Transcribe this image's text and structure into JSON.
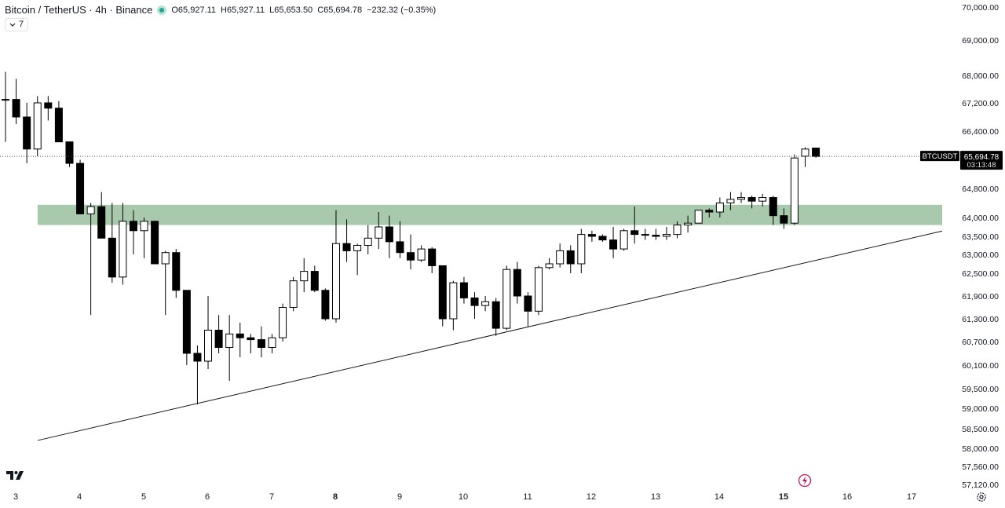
{
  "header": {
    "symbol": "Bitcoin / TetherUS · 4h · Binance",
    "open": "O65,927.11",
    "high": "H65,927.11",
    "low": "L65,653.50",
    "close": "C65,694.78",
    "change": "−232.32 (−0.35%)",
    "indicator_count": "7",
    "status_icon": "market-open-dot-icon"
  },
  "price_label": {
    "ticker": "BTCUSDT",
    "price": "65,694.78",
    "countdown": "03:13:48"
  },
  "colors": {
    "candle_up": "#ffffff",
    "candle_down": "#000000",
    "zone": "#a9c9ad",
    "price_tag": "#000000"
  },
  "icons": [
    "tradingview-logo-icon",
    "lightning-icon",
    "settings-icon",
    "chevron-down-icon"
  ],
  "chart_data": {
    "type": "candlestick",
    "title": "Bitcoin / TetherUS · 4h · Binance",
    "y_ticks": [
      70000,
      69000,
      68000,
      67200,
      66400,
      64800,
      64000,
      63500,
      63000,
      62500,
      61900,
      61300,
      60700,
      60100,
      59500,
      59000,
      58500,
      58000,
      57560,
      57120
    ],
    "y_tick_labels": [
      "70,000.00",
      "69,000.00",
      "68,000.00",
      "67,200.00",
      "66,400.00",
      "64,800.00",
      "64,000.00",
      "63,500.00",
      "63,000.00",
      "62,500.00",
      "61,900.00",
      "61,300.00",
      "60,700.00",
      "60,100.00",
      "59,500.00",
      "59,000.00",
      "58,500.00",
      "58,000.00",
      "57,560.00",
      "57,120.00"
    ],
    "x_labels": [
      "3",
      "4",
      "5",
      "6",
      "7",
      "8",
      "9",
      "10",
      "11",
      "12",
      "13",
      "14",
      "15",
      "16",
      "17"
    ],
    "x_labels_bold": [
      "8",
      "15"
    ],
    "candles": [
      {
        "o": 67300,
        "h": 68100,
        "l": 66100,
        "c": 67300
      },
      {
        "o": 67300,
        "h": 67900,
        "l": 66600,
        "c": 66800
      },
      {
        "o": 66800,
        "h": 67200,
        "l": 65500,
        "c": 65900
      },
      {
        "o": 65900,
        "h": 67400,
        "l": 65700,
        "c": 67200
      },
      {
        "o": 67200,
        "h": 67400,
        "l": 66700,
        "c": 67050
      },
      {
        "o": 67050,
        "h": 67250,
        "l": 66100,
        "c": 66100
      },
      {
        "o": 66100,
        "h": 66100,
        "l": 65400,
        "c": 65500
      },
      {
        "o": 65500,
        "h": 65600,
        "l": 64100,
        "c": 64100
      },
      {
        "o": 64100,
        "h": 64400,
        "l": 61400,
        "c": 64300
      },
      {
        "o": 64300,
        "h": 64700,
        "l": 63450,
        "c": 63450
      },
      {
        "o": 63450,
        "h": 64400,
        "l": 62250,
        "c": 62400
      },
      {
        "o": 62400,
        "h": 64400,
        "l": 62200,
        "c": 63900
      },
      {
        "o": 63900,
        "h": 64200,
        "l": 63000,
        "c": 63650
      },
      {
        "o": 63650,
        "h": 64000,
        "l": 62900,
        "c": 63900
      },
      {
        "o": 63900,
        "h": 63900,
        "l": 62750,
        "c": 62750
      },
      {
        "o": 62750,
        "h": 63100,
        "l": 61400,
        "c": 63050
      },
      {
        "o": 63050,
        "h": 63150,
        "l": 61850,
        "c": 62050
      },
      {
        "o": 62050,
        "h": 62050,
        "l": 60100,
        "c": 60400
      },
      {
        "o": 60400,
        "h": 60600,
        "l": 59100,
        "c": 60200
      },
      {
        "o": 60200,
        "h": 61900,
        "l": 60000,
        "c": 61000
      },
      {
        "o": 61000,
        "h": 61400,
        "l": 60400,
        "c": 60550
      },
      {
        "o": 60550,
        "h": 61400,
        "l": 59700,
        "c": 60900
      },
      {
        "o": 60900,
        "h": 61200,
        "l": 60300,
        "c": 60800
      },
      {
        "o": 60800,
        "h": 60900,
        "l": 60400,
        "c": 60750
      },
      {
        "o": 60750,
        "h": 61100,
        "l": 60300,
        "c": 60550
      },
      {
        "o": 60550,
        "h": 60900,
        "l": 60400,
        "c": 60800
      },
      {
        "o": 60800,
        "h": 61700,
        "l": 60700,
        "c": 61600
      },
      {
        "o": 61600,
        "h": 62400,
        "l": 61500,
        "c": 62300
      },
      {
        "o": 62300,
        "h": 62900,
        "l": 62000,
        "c": 62550
      },
      {
        "o": 62550,
        "h": 62700,
        "l": 62000,
        "c": 62050
      },
      {
        "o": 62050,
        "h": 62100,
        "l": 61250,
        "c": 61300
      },
      {
        "o": 61300,
        "h": 64200,
        "l": 61200,
        "c": 63300
      },
      {
        "o": 63300,
        "h": 63950,
        "l": 62800,
        "c": 63100
      },
      {
        "o": 63100,
        "h": 63300,
        "l": 62450,
        "c": 63250
      },
      {
        "o": 63250,
        "h": 63800,
        "l": 63000,
        "c": 63450
      },
      {
        "o": 63450,
        "h": 64150,
        "l": 63150,
        "c": 63750
      },
      {
        "o": 63750,
        "h": 64050,
        "l": 62900,
        "c": 63350
      },
      {
        "o": 63350,
        "h": 63900,
        "l": 62900,
        "c": 63050
      },
      {
        "o": 63050,
        "h": 63550,
        "l": 62600,
        "c": 62850
      },
      {
        "o": 62850,
        "h": 63250,
        "l": 62800,
        "c": 63150
      },
      {
        "o": 63150,
        "h": 63200,
        "l": 62500,
        "c": 62700
      },
      {
        "o": 62700,
        "h": 62700,
        "l": 61100,
        "c": 61300
      },
      {
        "o": 61300,
        "h": 62300,
        "l": 61000,
        "c": 62250
      },
      {
        "o": 62250,
        "h": 62400,
        "l": 61700,
        "c": 61850
      },
      {
        "o": 61850,
        "h": 62000,
        "l": 61300,
        "c": 61650
      },
      {
        "o": 61650,
        "h": 61900,
        "l": 61500,
        "c": 61750
      },
      {
        "o": 61750,
        "h": 61850,
        "l": 60850,
        "c": 61050
      },
      {
        "o": 61050,
        "h": 62700,
        "l": 61000,
        "c": 62600
      },
      {
        "o": 62600,
        "h": 62800,
        "l": 61700,
        "c": 61900
      },
      {
        "o": 61900,
        "h": 62000,
        "l": 61100,
        "c": 61500
      },
      {
        "o": 61500,
        "h": 62700,
        "l": 61400,
        "c": 62650
      },
      {
        "o": 62650,
        "h": 62900,
        "l": 62600,
        "c": 62750
      },
      {
        "o": 62750,
        "h": 63300,
        "l": 62650,
        "c": 63100
      },
      {
        "o": 63100,
        "h": 63250,
        "l": 62500,
        "c": 62750
      },
      {
        "o": 62750,
        "h": 63700,
        "l": 62500,
        "c": 63550
      },
      {
        "o": 63550,
        "h": 63650,
        "l": 63350,
        "c": 63500
      },
      {
        "o": 63500,
        "h": 63550,
        "l": 63350,
        "c": 63400
      },
      {
        "o": 63400,
        "h": 63750,
        "l": 62900,
        "c": 63150
      },
      {
        "o": 63150,
        "h": 63700,
        "l": 63100,
        "c": 63650
      },
      {
        "o": 63650,
        "h": 64300,
        "l": 63300,
        "c": 63550
      },
      {
        "o": 63550,
        "h": 63700,
        "l": 63400,
        "c": 63530
      },
      {
        "o": 63530,
        "h": 63700,
        "l": 63400,
        "c": 63500
      },
      {
        "o": 63500,
        "h": 63750,
        "l": 63400,
        "c": 63550
      },
      {
        "o": 63550,
        "h": 63900,
        "l": 63450,
        "c": 63800
      },
      {
        "o": 63800,
        "h": 64050,
        "l": 63600,
        "c": 63850
      },
      {
        "o": 63850,
        "h": 64200,
        "l": 63850,
        "c": 64200
      },
      {
        "o": 64200,
        "h": 64250,
        "l": 64000,
        "c": 64150
      },
      {
        "o": 64150,
        "h": 64550,
        "l": 64000,
        "c": 64400
      },
      {
        "o": 64400,
        "h": 64700,
        "l": 64200,
        "c": 64500
      },
      {
        "o": 64500,
        "h": 64700,
        "l": 64400,
        "c": 64550
      },
      {
        "o": 64550,
        "h": 64600,
        "l": 64250,
        "c": 64450
      },
      {
        "o": 64450,
        "h": 64650,
        "l": 64300,
        "c": 64550
      },
      {
        "o": 64550,
        "h": 64600,
        "l": 63800,
        "c": 64050
      },
      {
        "o": 64050,
        "h": 64250,
        "l": 63700,
        "c": 63850
      },
      {
        "o": 63850,
        "h": 65750,
        "l": 63800,
        "c": 65650
      },
      {
        "o": 65700,
        "h": 65950,
        "l": 65400,
        "c": 65900
      },
      {
        "o": 65927.11,
        "h": 65927.11,
        "l": 65653.5,
        "c": 65694.78
      }
    ],
    "current_price": 65694.78,
    "zone": {
      "from": 63800,
      "to": 64350
    },
    "trendline": [
      {
        "candle_index": 3,
        "price": 58200
      },
      {
        "candle_index": 88,
        "price": 63650
      }
    ]
  }
}
